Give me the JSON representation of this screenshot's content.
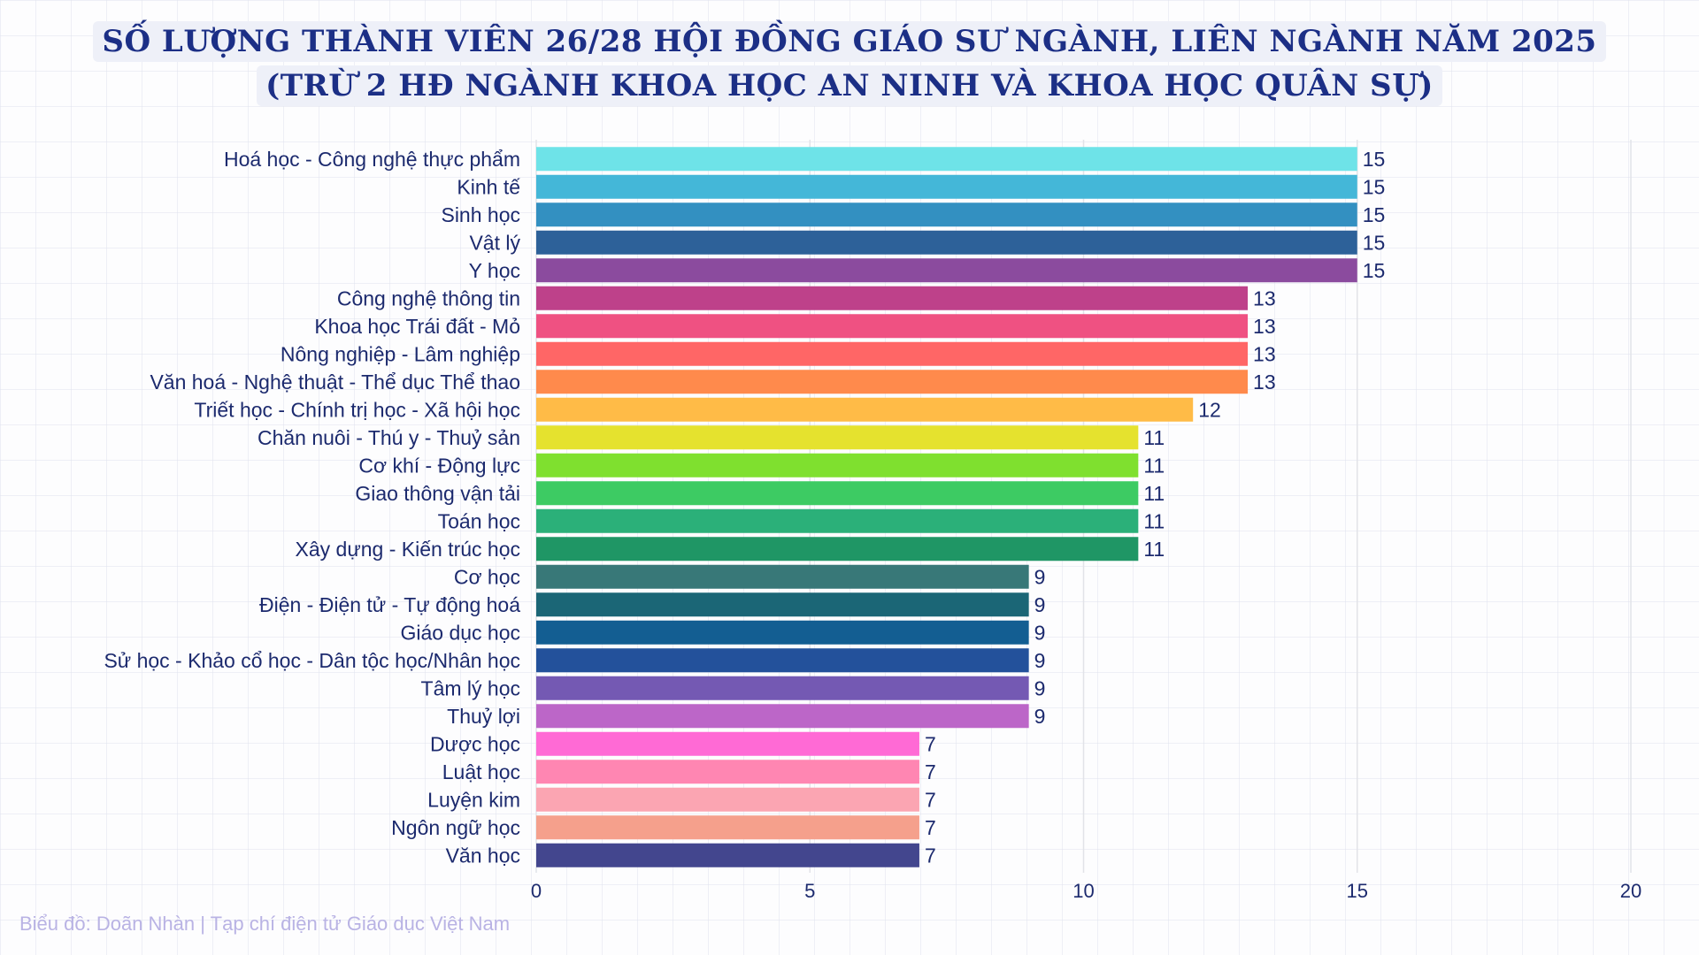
{
  "chart_data": {
    "type": "bar",
    "orientation": "horizontal",
    "title_lines": [
      "SỐ LƯỢNG THÀNH VIÊN 26/28 HỘI ĐỒNG GIÁO SƯ NGÀNH, LIÊN NGÀNH NĂM 2025",
      "(TRỪ 2 HĐ NGÀNH KHOA HỌC AN NINH VÀ KHOA HỌC QUÂN SỰ)"
    ],
    "categories": [
      "Hoá học - Công nghệ thực phẩm",
      "Kinh tế",
      "Sinh học",
      "Vật lý",
      "Y học",
      "Công nghệ thông tin",
      "Khoa học Trái đất - Mỏ",
      "Nông nghiệp - Lâm nghiệp",
      "Văn hoá - Nghệ thuật - Thể dục Thể thao",
      "Triết học - Chính trị học - Xã hội học",
      "Chăn nuôi - Thú y - Thuỷ sản",
      "Cơ khí - Động lực",
      "Giao thông vận tải",
      "Toán học",
      "Xây dựng - Kiến trúc học",
      "Cơ học",
      "Điện - Điện tử - Tự động hoá",
      "Giáo dục học",
      "Sử học - Khảo cổ học - Dân tộc học/Nhân học",
      "Tâm lý học",
      "Thuỷ lợi",
      "Dược học",
      "Luật học",
      "Luyện kim",
      "Ngôn ngữ học",
      "Văn học"
    ],
    "values": [
      15,
      15,
      15,
      15,
      15,
      13,
      13,
      13,
      13,
      12,
      11,
      11,
      11,
      11,
      11,
      9,
      9,
      9,
      9,
      9,
      9,
      7,
      7,
      7,
      7,
      7
    ],
    "colors": [
      "#6ee3e8",
      "#44b7d8",
      "#3390c1",
      "#2d6199",
      "#8b4b9e",
      "#be418a",
      "#ef5182",
      "#ff6666",
      "#ff8a4c",
      "#ffbb47",
      "#e5e22e",
      "#7fe02f",
      "#3dcb63",
      "#2bb079",
      "#1f9665",
      "#387878",
      "#1b6676",
      "#135e92",
      "#23519b",
      "#7459b3",
      "#bc66c8",
      "#ff6ad5",
      "#ff86b2",
      "#fba5b2",
      "#f5a08c",
      "#43468e"
    ],
    "xlim": [
      0,
      20
    ],
    "xticks": [
      0,
      5,
      10,
      15,
      20
    ],
    "grid": true,
    "legend": "none",
    "data_labels": true
  },
  "footer": "Biểu đồ: Doãn Nhàn | Tạp chí điện tử Giáo dục Việt Nam"
}
